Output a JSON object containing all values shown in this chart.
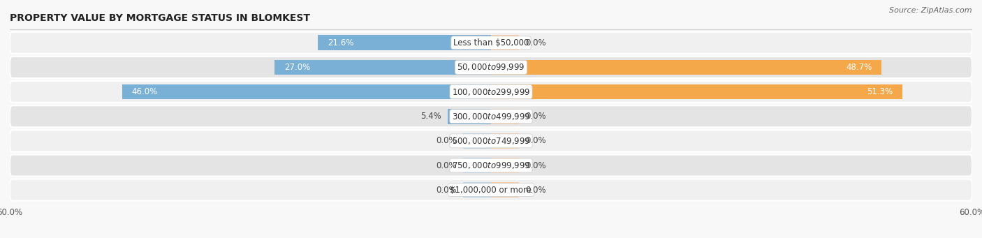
{
  "title": "PROPERTY VALUE BY MORTGAGE STATUS IN BLOMKEST",
  "source": "Source: ZipAtlas.com",
  "categories": [
    "Less than $50,000",
    "$50,000 to $99,999",
    "$100,000 to $299,999",
    "$300,000 to $499,999",
    "$500,000 to $749,999",
    "$750,000 to $999,999",
    "$1,000,000 or more"
  ],
  "without_mortgage": [
    21.6,
    27.0,
    46.0,
    5.4,
    0.0,
    0.0,
    0.0
  ],
  "with_mortgage": [
    0.0,
    48.7,
    51.3,
    0.0,
    0.0,
    0.0,
    0.0
  ],
  "xlim": 60.0,
  "color_without": "#7aafd6",
  "color_with": "#f5a84a",
  "color_without_light": "#b8d4ea",
  "color_with_light": "#f8ceaa",
  "row_color_odd": "#f0f0f0",
  "row_color_even": "#e4e4e4",
  "bg_color": "#f8f8f8",
  "label_fontsize": 8.5,
  "value_fontsize": 8.5,
  "title_fontsize": 10,
  "source_fontsize": 8
}
